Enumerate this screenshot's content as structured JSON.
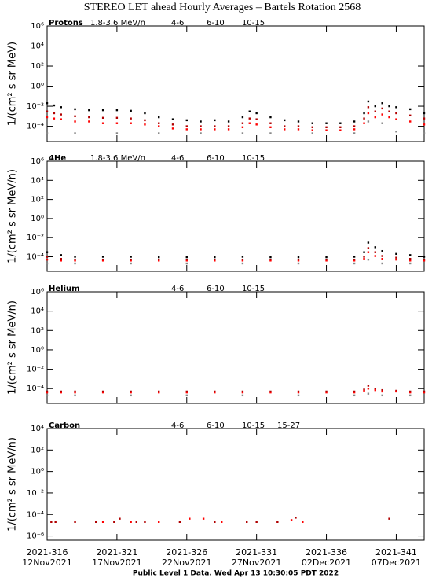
{
  "title": "STEREO LET ahead Hourly Averages – Bartels Rotation 2568",
  "footer": "Public Level 1 Data. Wed Apr 13 10:30:05 PDT 2022",
  "x_axis": {
    "xlim": [
      316,
      343
    ],
    "xticks": [
      {
        "value": 316,
        "label": "2021-316"
      },
      {
        "value": 321,
        "label": "2021-321"
      },
      {
        "value": 326,
        "label": "2021-326"
      },
      {
        "value": 331,
        "label": "2021-331"
      },
      {
        "value": 336,
        "label": "2021-336"
      },
      {
        "value": 341,
        "label": "2021-341"
      }
    ],
    "dates": [
      "12Nov2021",
      "17Nov2021",
      "22Nov2021",
      "27Nov2021",
      "02Dec2021",
      "07Dec2021"
    ]
  },
  "chart_data": [
    {
      "type": "scatter",
      "title": "Protons",
      "ylabel": "1/(cm² s sr MeV)",
      "log_y": true,
      "ylim": [
        3e-06,
        1000000
      ],
      "yticks": [
        {
          "value": 1000000,
          "label": "10⁶"
        },
        {
          "value": 10000,
          "label": "10⁴"
        },
        {
          "value": 100,
          "label": "10²"
        },
        {
          "value": 1,
          "label": "10⁰"
        },
        {
          "value": 0.01,
          "label": "10⁻²"
        },
        {
          "value": 0.0001,
          "label": "10⁻⁴"
        }
      ],
      "x": [
        316,
        316.5,
        317,
        318,
        319,
        320,
        321,
        322,
        323,
        324,
        325,
        326,
        327,
        328,
        329,
        330,
        330.5,
        331,
        332,
        333,
        334,
        335,
        336,
        337,
        338,
        338.7,
        339,
        339.5,
        340,
        340.5,
        341,
        342,
        343
      ],
      "series": [
        {
          "name": "1.8-3.6 MeV/n",
          "color": "#000000",
          "values": [
            0.02,
            0.012,
            0.008,
            0.005,
            0.004,
            0.004,
            0.004,
            0.0035,
            0.002,
            0.0008,
            0.0005,
            0.0004,
            0.0003,
            0.0004,
            0.0003,
            0.0008,
            0.003,
            0.002,
            0.0008,
            0.0004,
            0.0003,
            0.0002,
            0.0002,
            0.0002,
            0.0003,
            0.002,
            0.03,
            0.01,
            0.02,
            0.01,
            0.008,
            0.005,
            0.002
          ]
        },
        {
          "name": "4-6",
          "color": "#b00000",
          "values": [
            0.003,
            0.002,
            0.0015,
            0.001,
            0.0008,
            0.0007,
            0.0007,
            0.0006,
            0.0004,
            0.0002,
            0.00015,
            0.0001,
            0.0001,
            0.0001,
            0.0001,
            0.0002,
            0.0006,
            0.0005,
            0.0002,
            0.0001,
            0.0001,
            8e-05,
            8e-05,
            8e-05,
            0.0001,
            0.0006,
            0.008,
            0.003,
            0.006,
            0.003,
            0.002,
            0.0012,
            0.0006
          ]
        },
        {
          "name": "6-10",
          "color": "#ff0000",
          "values": [
            0.0008,
            0.0006,
            0.0005,
            0.0003,
            0.0003,
            0.0002,
            0.0002,
            0.0002,
            0.00015,
            0.0001,
            6e-05,
            5e-05,
            5e-05,
            5e-05,
            5e-05,
            8e-05,
            0.0002,
            0.00015,
            8e-05,
            5e-05,
            5e-05,
            4e-05,
            4e-05,
            4e-05,
            5e-05,
            0.0002,
            0.002,
            0.0008,
            0.0015,
            0.0008,
            0.0005,
            0.0003,
            0.00015
          ]
        },
        {
          "name": "10-15",
          "color": "#888888",
          "values": [
            2e-05,
            null,
            null,
            2e-05,
            null,
            null,
            2e-05,
            null,
            null,
            2e-05,
            null,
            null,
            2e-05,
            null,
            null,
            2e-05,
            null,
            null,
            2e-05,
            null,
            null,
            2e-05,
            null,
            null,
            2e-05,
            null,
            0.0003,
            null,
            0.0002,
            null,
            3e-05,
            null,
            2e-05
          ]
        }
      ]
    },
    {
      "type": "scatter",
      "title": "4He",
      "ylabel": "1/(cm² s sr MeV/n)",
      "log_y": true,
      "ylim": [
        3e-06,
        1000000
      ],
      "yticks": [
        {
          "value": 1000000,
          "label": "10⁶"
        },
        {
          "value": 10000,
          "label": "10⁴"
        },
        {
          "value": 100,
          "label": "10²"
        },
        {
          "value": 1,
          "label": "10⁰"
        },
        {
          "value": 0.01,
          "label": "10⁻²"
        },
        {
          "value": 0.0001,
          "label": "10⁻⁴"
        }
      ],
      "x": [
        316,
        317,
        318,
        320,
        322,
        324,
        326,
        328,
        330,
        332,
        334,
        336,
        338,
        338.7,
        339,
        339.5,
        340,
        341,
        342,
        343
      ],
      "series": [
        {
          "name": "1.8-3.6 MeV/n",
          "color": "#000000",
          "values": [
            0.0003,
            0.00015,
            0.0001,
            0.0001,
            0.0001,
            9e-05,
            9e-05,
            9e-05,
            0.0001,
            9e-05,
            9e-05,
            9e-05,
            0.0001,
            0.0003,
            0.003,
            0.001,
            0.0004,
            0.0002,
            0.00015,
            0.0001
          ]
        },
        {
          "name": "4-6",
          "color": "#b00000",
          "values": [
            0.0001,
            6e-05,
            5e-05,
            5e-05,
            5e-05,
            5e-05,
            5e-05,
            5e-05,
            5e-05,
            5e-05,
            5e-05,
            5e-05,
            5e-05,
            0.0001,
            0.0008,
            0.0003,
            0.00012,
            8e-05,
            6e-05,
            5e-05
          ]
        },
        {
          "name": "6-10",
          "color": "#ff0000",
          "values": [
            5e-05,
            4e-05,
            4e-05,
            4e-05,
            4e-05,
            4e-05,
            4e-05,
            4e-05,
            4e-05,
            4e-05,
            4e-05,
            4e-05,
            4e-05,
            6e-05,
            0.0003,
            0.00012,
            6e-05,
            5e-05,
            4e-05,
            4e-05
          ]
        },
        {
          "name": "10-15",
          "color": "#888888",
          "values": [
            2e-05,
            null,
            2e-05,
            null,
            2e-05,
            null,
            2e-05,
            null,
            2e-05,
            null,
            2e-05,
            null,
            2e-05,
            null,
            5e-05,
            null,
            2e-05,
            null,
            2e-05,
            null
          ]
        }
      ]
    },
    {
      "type": "scatter",
      "title": "Helium",
      "ylabel": "1/(cm² s sr MeV/n)",
      "log_y": true,
      "ylim": [
        3e-06,
        1000000
      ],
      "yticks": [
        {
          "value": 1000000,
          "label": "10⁶"
        },
        {
          "value": 10000,
          "label": "10⁴"
        },
        {
          "value": 100,
          "label": "10²"
        },
        {
          "value": 1,
          "label": "10⁰"
        },
        {
          "value": 0.01,
          "label": "10⁻²"
        },
        {
          "value": 0.0001,
          "label": "10⁻⁴"
        }
      ],
      "x": [
        316,
        317,
        318,
        320,
        322,
        324,
        326,
        328,
        330,
        332,
        334,
        336,
        338,
        338.7,
        339,
        339.5,
        340,
        341,
        342,
        343
      ],
      "series": [
        {
          "name": "4-6",
          "color": "#b00000",
          "values": [
            5e-05,
            5e-05,
            5e-05,
            5e-05,
            5e-05,
            5e-05,
            5e-05,
            5e-05,
            5e-05,
            5e-05,
            5e-05,
            5e-05,
            5e-05,
            8e-05,
            0.0002,
            0.0001,
            7e-05,
            6e-05,
            5e-05,
            5e-05
          ]
        },
        {
          "name": "6-10",
          "color": "#ff0000",
          "values": [
            4e-05,
            4e-05,
            4e-05,
            4e-05,
            4e-05,
            4e-05,
            4e-05,
            4e-05,
            4e-05,
            4e-05,
            4e-05,
            4e-05,
            4e-05,
            6e-05,
            0.0001,
            7e-05,
            5e-05,
            5e-05,
            4e-05,
            4e-05
          ]
        },
        {
          "name": "10-15",
          "color": "#888888",
          "values": [
            2e-05,
            null,
            2e-05,
            null,
            2e-05,
            null,
            2e-05,
            null,
            2e-05,
            null,
            2e-05,
            null,
            2e-05,
            null,
            3e-05,
            null,
            2e-05,
            null,
            2e-05,
            null
          ]
        }
      ]
    },
    {
      "type": "scatter",
      "title": "Carbon",
      "ylabel": "1/(cm² s sr MeV/n)",
      "log_y": true,
      "ylim": [
        4e-07,
        10000
      ],
      "yticks": [
        {
          "value": 10000,
          "label": "10⁴"
        },
        {
          "value": 100,
          "label": "10²"
        },
        {
          "value": 1,
          "label": "10⁰"
        },
        {
          "value": 0.01,
          "label": "10⁻²"
        },
        {
          "value": 0.0001,
          "label": "10⁻⁴"
        },
        {
          "value": 1e-06,
          "label": "10⁻⁶"
        }
      ],
      "x": [
        316.3,
        316.6,
        318,
        319.5,
        320,
        320.8,
        321.2,
        322,
        322.4,
        323,
        324,
        325.5,
        326.2,
        327.2,
        328,
        328.5,
        330.3,
        331,
        332.5,
        333.5,
        333.8,
        334.3,
        340.5
      ],
      "series": [
        {
          "name": "4-6",
          "color": "#b00000",
          "values": [
            2e-05,
            2e-05,
            2e-05,
            2e-05,
            null,
            2e-05,
            4e-05,
            null,
            2e-05,
            2e-05,
            null,
            2e-05,
            null,
            null,
            2e-05,
            null,
            2e-05,
            2e-05,
            2e-05,
            null,
            5e-05,
            null,
            4e-05
          ]
        },
        {
          "name": "6-10",
          "color": "#ff0000",
          "values": [
            null,
            null,
            null,
            null,
            2e-05,
            null,
            null,
            2e-05,
            null,
            null,
            2e-05,
            null,
            4e-05,
            4e-05,
            null,
            2e-05,
            null,
            null,
            null,
            3e-05,
            null,
            2e-05,
            null
          ]
        },
        {
          "name": "10-15",
          "color": "#888888",
          "values": [
            null,
            null,
            null,
            null,
            null,
            null,
            null,
            null,
            null,
            null,
            null,
            null,
            null,
            null,
            null,
            null,
            null,
            null,
            null,
            null,
            null,
            null,
            null
          ]
        },
        {
          "name": "15-27",
          "color": "#0000ff",
          "values": [
            null,
            null,
            null,
            null,
            null,
            null,
            null,
            null,
            null,
            null,
            null,
            null,
            null,
            null,
            null,
            null,
            null,
            null,
            null,
            null,
            null,
            null,
            null
          ]
        }
      ]
    }
  ]
}
